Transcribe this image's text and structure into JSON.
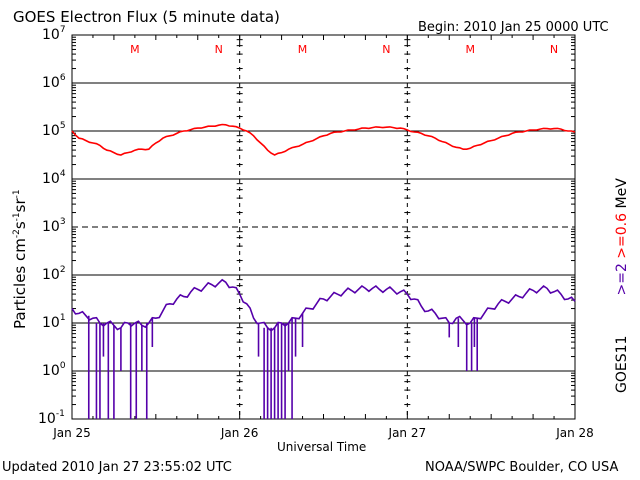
{
  "chart_data": {
    "type": "line",
    "title": "GOES Electron Flux (5 minute data)",
    "begin_label": "Begin: 2010 Jan 25 0000 UTC",
    "xlabel": "Universal Time",
    "ylabel": "Particles cm-2 s-1 sr-1",
    "ylabel_parts": {
      "base": "Particles cm",
      "e1": "-2",
      "s": "s",
      "e2": "-1",
      "sr": "sr",
      "e3": "-1"
    },
    "yscale": "log",
    "ylim_log10": [
      -1,
      7
    ],
    "y_ticks": [
      {
        "base": "10",
        "exp": "7"
      },
      {
        "base": "10",
        "exp": "6"
      },
      {
        "base": "10",
        "exp": "5"
      },
      {
        "base": "10",
        "exp": "4"
      },
      {
        "base": "10",
        "exp": "3"
      },
      {
        "base": "10",
        "exp": "2"
      },
      {
        "base": "10",
        "exp": "1"
      },
      {
        "base": "10",
        "exp": "0"
      },
      {
        "base": "10",
        "exp": "-1"
      }
    ],
    "x_unit": "hours since 2010 Jan 25 0000 UTC",
    "xlim": [
      0,
      72
    ],
    "x_ticks": [
      "Jan 25",
      "Jan 26",
      "Jan 27",
      "Jan 28"
    ],
    "markers": [
      {
        "label": "M",
        "hour": 9
      },
      {
        "label": "N",
        "hour": 21
      },
      {
        "label": "M",
        "hour": 33
      },
      {
        "label": "N",
        "hour": 45
      },
      {
        "label": "M",
        "hour": 57
      },
      {
        "label": "N",
        "hour": 69
      }
    ],
    "right_labels": {
      "satellite": "GOES11",
      "ge2": ">=2",
      "ge06": ">=0.6",
      "unit": "MeV"
    },
    "series": [
      {
        "name": ">=0.6 MeV",
        "color": "#ff0000",
        "log10_values": [
          5.0,
          4.85,
          4.8,
          4.75,
          4.7,
          4.6,
          4.55,
          4.5,
          4.55,
          4.6,
          4.62,
          4.62,
          4.75,
          4.85,
          4.9,
          4.95,
          5.0,
          5.03,
          5.06,
          5.08,
          5.1,
          5.12,
          5.13,
          5.1,
          5.06,
          5.0,
          4.9,
          4.75,
          4.6,
          4.5,
          4.55,
          4.62,
          4.67,
          4.72,
          4.78,
          4.84,
          4.9,
          4.95,
          4.98,
          5.0,
          5.02,
          5.04,
          5.06,
          5.07,
          5.08,
          5.08,
          5.07,
          5.06,
          5.02,
          4.98,
          4.95,
          4.9,
          4.85,
          4.78,
          4.72,
          4.66,
          4.62,
          4.64,
          4.7,
          4.75,
          4.8,
          4.85,
          4.9,
          4.95,
          4.98,
          5.0,
          5.02,
          5.04,
          5.05,
          5.05,
          5.04,
          5.0,
          4.98
        ]
      },
      {
        "name": ">=2 MeV",
        "color": "#5500aa",
        "log10_values": [
          1.3,
          1.2,
          1.15,
          1.1,
          1.0,
          1.0,
          0.95,
          0.9,
          1.0,
          1.0,
          0.95,
          1.0,
          1.1,
          1.25,
          1.4,
          1.5,
          1.55,
          1.65,
          1.7,
          1.75,
          1.8,
          1.83,
          1.85,
          1.75,
          1.6,
          1.4,
          1.1,
          1.0,
          0.9,
          0.9,
          1.0,
          1.0,
          1.1,
          1.2,
          1.3,
          1.4,
          1.5,
          1.55,
          1.6,
          1.65,
          1.68,
          1.7,
          1.72,
          1.72,
          1.7,
          1.7,
          1.68,
          1.65,
          1.6,
          1.5,
          1.35,
          1.25,
          1.2,
          1.1,
          1.0,
          1.1,
          1.05,
          1.0,
          1.1,
          1.2,
          1.3,
          1.4,
          1.45,
          1.5,
          1.55,
          1.62,
          1.68,
          1.7,
          1.72,
          1.65,
          1.6,
          1.5,
          1.45
        ],
        "dropouts": [
          [
            2.4,
            -1
          ],
          [
            3.5,
            -1
          ],
          [
            4,
            -1
          ],
          [
            4.5,
            0.3
          ],
          [
            5.2,
            -1
          ],
          [
            6,
            -1
          ],
          [
            7,
            0
          ],
          [
            8.4,
            -1
          ],
          [
            9.2,
            -1
          ],
          [
            10,
            0
          ],
          [
            10.7,
            -1
          ],
          [
            11.5,
            0.5
          ],
          [
            26.7,
            0.3
          ],
          [
            27.5,
            -1
          ],
          [
            28,
            -1
          ],
          [
            28.5,
            -1
          ],
          [
            29,
            -1
          ],
          [
            29.5,
            -1
          ],
          [
            30,
            -1
          ],
          [
            30.5,
            -1
          ],
          [
            31,
            0
          ],
          [
            31.5,
            -1
          ],
          [
            32,
            0.3
          ],
          [
            33,
            0.5
          ],
          [
            54,
            0.7
          ],
          [
            55.3,
            0.5
          ],
          [
            56.5,
            0
          ],
          [
            57.2,
            0
          ],
          [
            57.6,
            0.5
          ],
          [
            58,
            0
          ]
        ]
      }
    ]
  },
  "footer": {
    "updated": "Updated 2010 Jan 27 23:55:02 UTC",
    "credit": "NOAA/SWPC Boulder, CO USA"
  }
}
